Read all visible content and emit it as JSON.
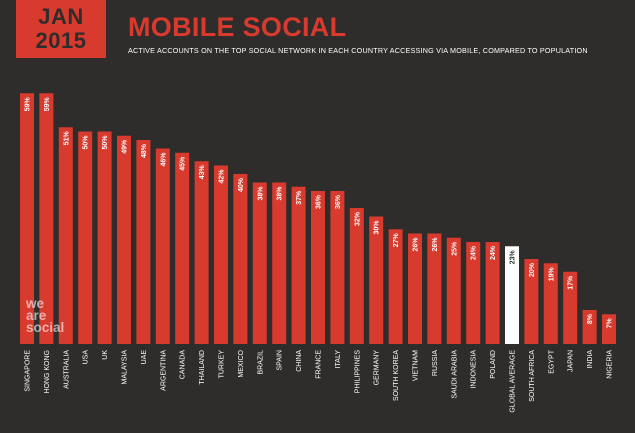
{
  "header": {
    "month": "JAN",
    "year": "2015",
    "title": "MOBILE SOCIAL",
    "subtitle": "ACTIVE ACCOUNTS ON THE TOP SOCIAL NETWORK IN EACH COUNTRY ACCESSING VIA MOBILE, COMPARED TO POPULATION"
  },
  "brand": {
    "line1": "we",
    "line2": "are",
    "line3": "social"
  },
  "colors": {
    "background": "#2f2d2c",
    "bar": "#d83a2e",
    "highlight": "#ffffff",
    "label": "#ffffff"
  },
  "chart_data": {
    "type": "bar",
    "title": "MOBILE SOCIAL",
    "categories": [
      "SINGAPORE",
      "HONG KONG",
      "AUSTRALIA",
      "USA",
      "UK",
      "MALAYSIA",
      "UAE",
      "ARGENTINA",
      "CANADA",
      "THAILAND",
      "TURKEY",
      "MEXICO",
      "BRAZIL",
      "SPAIN",
      "CHINA",
      "FRANCE",
      "ITALY",
      "PHILIPPINES",
      "GERMANY",
      "SOUTH KOREA",
      "VIETNAM",
      "RUSSIA",
      "SAUDI ARABIA",
      "INDONESIA",
      "POLAND",
      "GLOBAL AVERAGE",
      "SOUTH AFRICA",
      "EGYPT",
      "JAPAN",
      "INDIA",
      "NIGERIA"
    ],
    "values": [
      59,
      59,
      51,
      50,
      50,
      49,
      48,
      46,
      45,
      43,
      42,
      40,
      38,
      38,
      37,
      36,
      36,
      32,
      30,
      27,
      26,
      26,
      25,
      24,
      24,
      23,
      20,
      19,
      17,
      8,
      7
    ],
    "data_labels": [
      "59%",
      "59%",
      "51%",
      "50%",
      "50%",
      "49%",
      "48%",
      "46%",
      "45%",
      "43%",
      "42%",
      "40%",
      "38%",
      "38%",
      "37%",
      "36%",
      "36%",
      "32%",
      "30%",
      "27%",
      "26%",
      "26%",
      "25%",
      "24%",
      "24%",
      "23%",
      "20%",
      "19%",
      "17%",
      "8%",
      "7%"
    ],
    "highlight_index": 25,
    "ylim": [
      0,
      60
    ],
    "grid": false,
    "legend": "none"
  }
}
